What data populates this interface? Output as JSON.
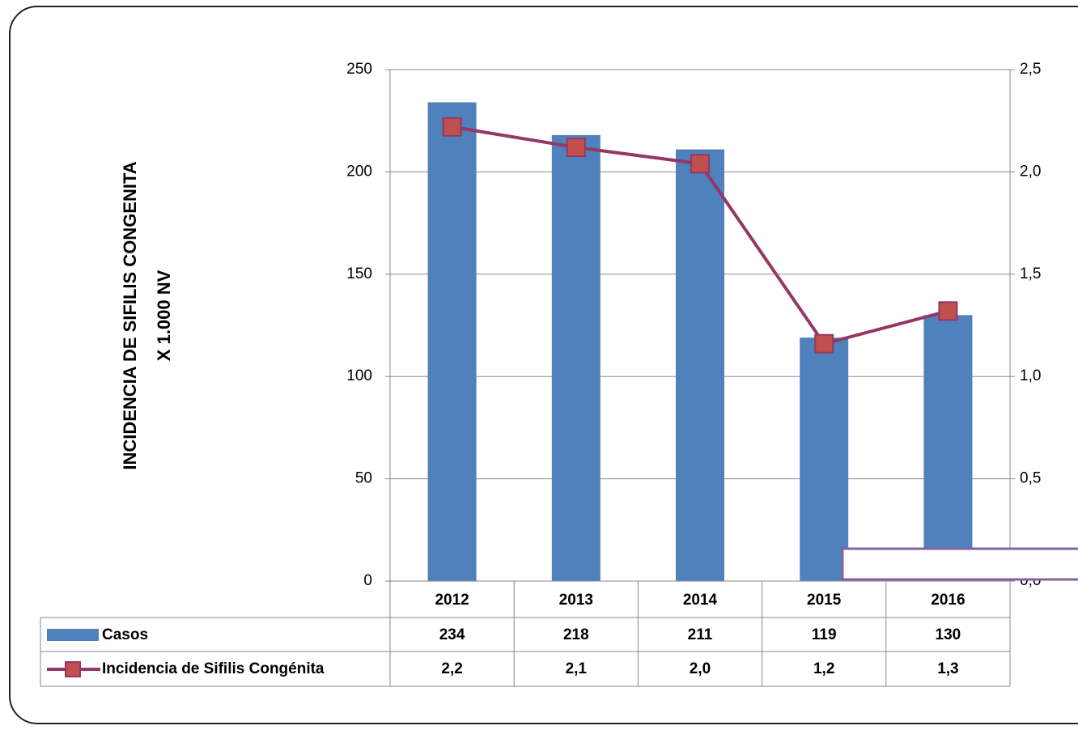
{
  "chart_data": {
    "type": "bar-line",
    "y_label": [
      "INCIDENCIA DE SIFILIS CONGENITA",
      "X 1.000 NV"
    ],
    "categories": [
      "2012",
      "2013",
      "2014",
      "2015",
      "2016"
    ],
    "series": [
      {
        "name": "Casos",
        "type": "bar",
        "color": "#4f81bd",
        "values": [
          234,
          218,
          211,
          119,
          130
        ]
      },
      {
        "name": "Incidencia de Sifilis Congénita",
        "type": "line",
        "axis": "y2",
        "color": "#953765",
        "marker_color": "#c0504d",
        "values": [
          2.22,
          2.12,
          2.04,
          1.16,
          1.32
        ],
        "value_labels": [
          "2,2",
          "2,1",
          "2,0",
          "1,2",
          "1,3"
        ]
      }
    ],
    "ylim": [
      0,
      250
    ],
    "yticks": [
      0,
      50,
      100,
      150,
      200,
      250
    ],
    "y2lim": [
      0,
      2.5
    ],
    "y2ticks": [
      {
        "value": 0,
        "label": "0,0"
      },
      {
        "value": 0.5,
        "label": "0,5"
      },
      {
        "value": 1,
        "label": "1,0"
      },
      {
        "value": 1.5,
        "label": "1,5"
      },
      {
        "value": 2,
        "label": "2,0"
      },
      {
        "value": 2.5,
        "label": "2,5"
      }
    ],
    "grid": true,
    "legend": "table"
  }
}
